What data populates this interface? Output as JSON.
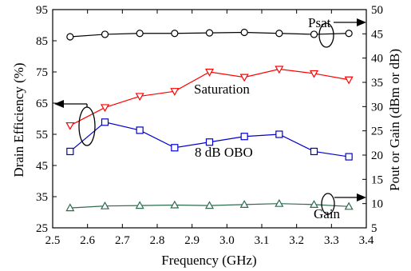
{
  "chart_data": {
    "type": "line",
    "xlabel": "Frequency (GHz)",
    "ylabel_left": "Drain Efficiency (%)",
    "ylabel_right": "Pout or Gain (dBm or dB)",
    "xlim": [
      2.5,
      3.4
    ],
    "ylim_left": [
      25,
      95
    ],
    "ylim_right": [
      5,
      50
    ],
    "x_ticks": [
      "2.5",
      "2.6",
      "2.7",
      "2.8",
      "2.9",
      "3.0",
      "3.1",
      "3.2",
      "3.3",
      "3.4"
    ],
    "y_left_ticks": [
      "25",
      "35",
      "45",
      "55",
      "65",
      "75",
      "85",
      "95"
    ],
    "y_right_ticks": [
      "5",
      "10",
      "15",
      "20",
      "25",
      "30",
      "35",
      "40",
      "45",
      "50"
    ],
    "grid": false,
    "legend": "none",
    "x": [
      2.55,
      2.65,
      2.75,
      2.85,
      2.95,
      3.05,
      3.15,
      3.25,
      3.35
    ],
    "series": [
      {
        "name": "Psat",
        "axis": "right",
        "marker": "circle",
        "color": "#000000",
        "values": [
          44.4,
          44.9,
          45.1,
          45.1,
          45.2,
          45.3,
          45.1,
          44.9,
          45.1
        ]
      },
      {
        "name": "Saturation",
        "axis": "left",
        "marker": "triangle-down",
        "color": "#ff0000",
        "values": [
          57.8,
          63.6,
          67.2,
          68.8,
          75.0,
          73.3,
          75.9,
          74.5,
          72.5
        ]
      },
      {
        "name": "8 dB OBO",
        "axis": "left",
        "marker": "square",
        "color": "#0000cc",
        "values": [
          49.5,
          58.9,
          56.3,
          50.7,
          52.5,
          54.3,
          55.0,
          49.5,
          47.8
        ]
      },
      {
        "name": "Gain",
        "axis": "right",
        "marker": "triangle-up",
        "color": "#2e6b4f",
        "values": [
          9.1,
          9.5,
          9.6,
          9.7,
          9.6,
          9.8,
          10.0,
          9.8,
          9.4
        ]
      }
    ],
    "annotations": [
      {
        "text": "Psat"
      },
      {
        "text": "Saturation"
      },
      {
        "text": "8 dB OBO"
      },
      {
        "text": "Gain"
      }
    ]
  }
}
